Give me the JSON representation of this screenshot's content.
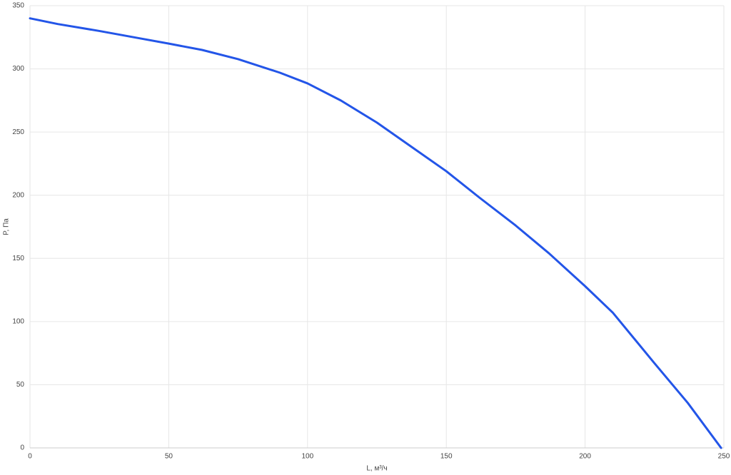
{
  "chart_data": {
    "type": "line",
    "x_label": "L, м³/ч",
    "y_label": "P, Па",
    "x": [
      0,
      10,
      25,
      40,
      50,
      62,
      75,
      90,
      100,
      112,
      125,
      137,
      150,
      162,
      175,
      187,
      200,
      210,
      225,
      237,
      249
    ],
    "series": [
      {
        "name": "P",
        "color": "#2355e8",
        "values": [
          340,
          335.5,
          330,
          324,
          320,
          315,
          307.7,
          297,
          288.5,
          275,
          257.5,
          239,
          219,
          198,
          176,
          154,
          128,
          107,
          67,
          35.6,
          0
        ]
      }
    ],
    "xlim": [
      0,
      250
    ],
    "xticks": [
      0,
      50,
      100,
      150,
      200,
      250
    ],
    "ylim": [
      0,
      350
    ],
    "yticks": [
      0,
      50,
      100,
      150,
      200,
      250,
      300,
      350
    ],
    "grid": true
  }
}
